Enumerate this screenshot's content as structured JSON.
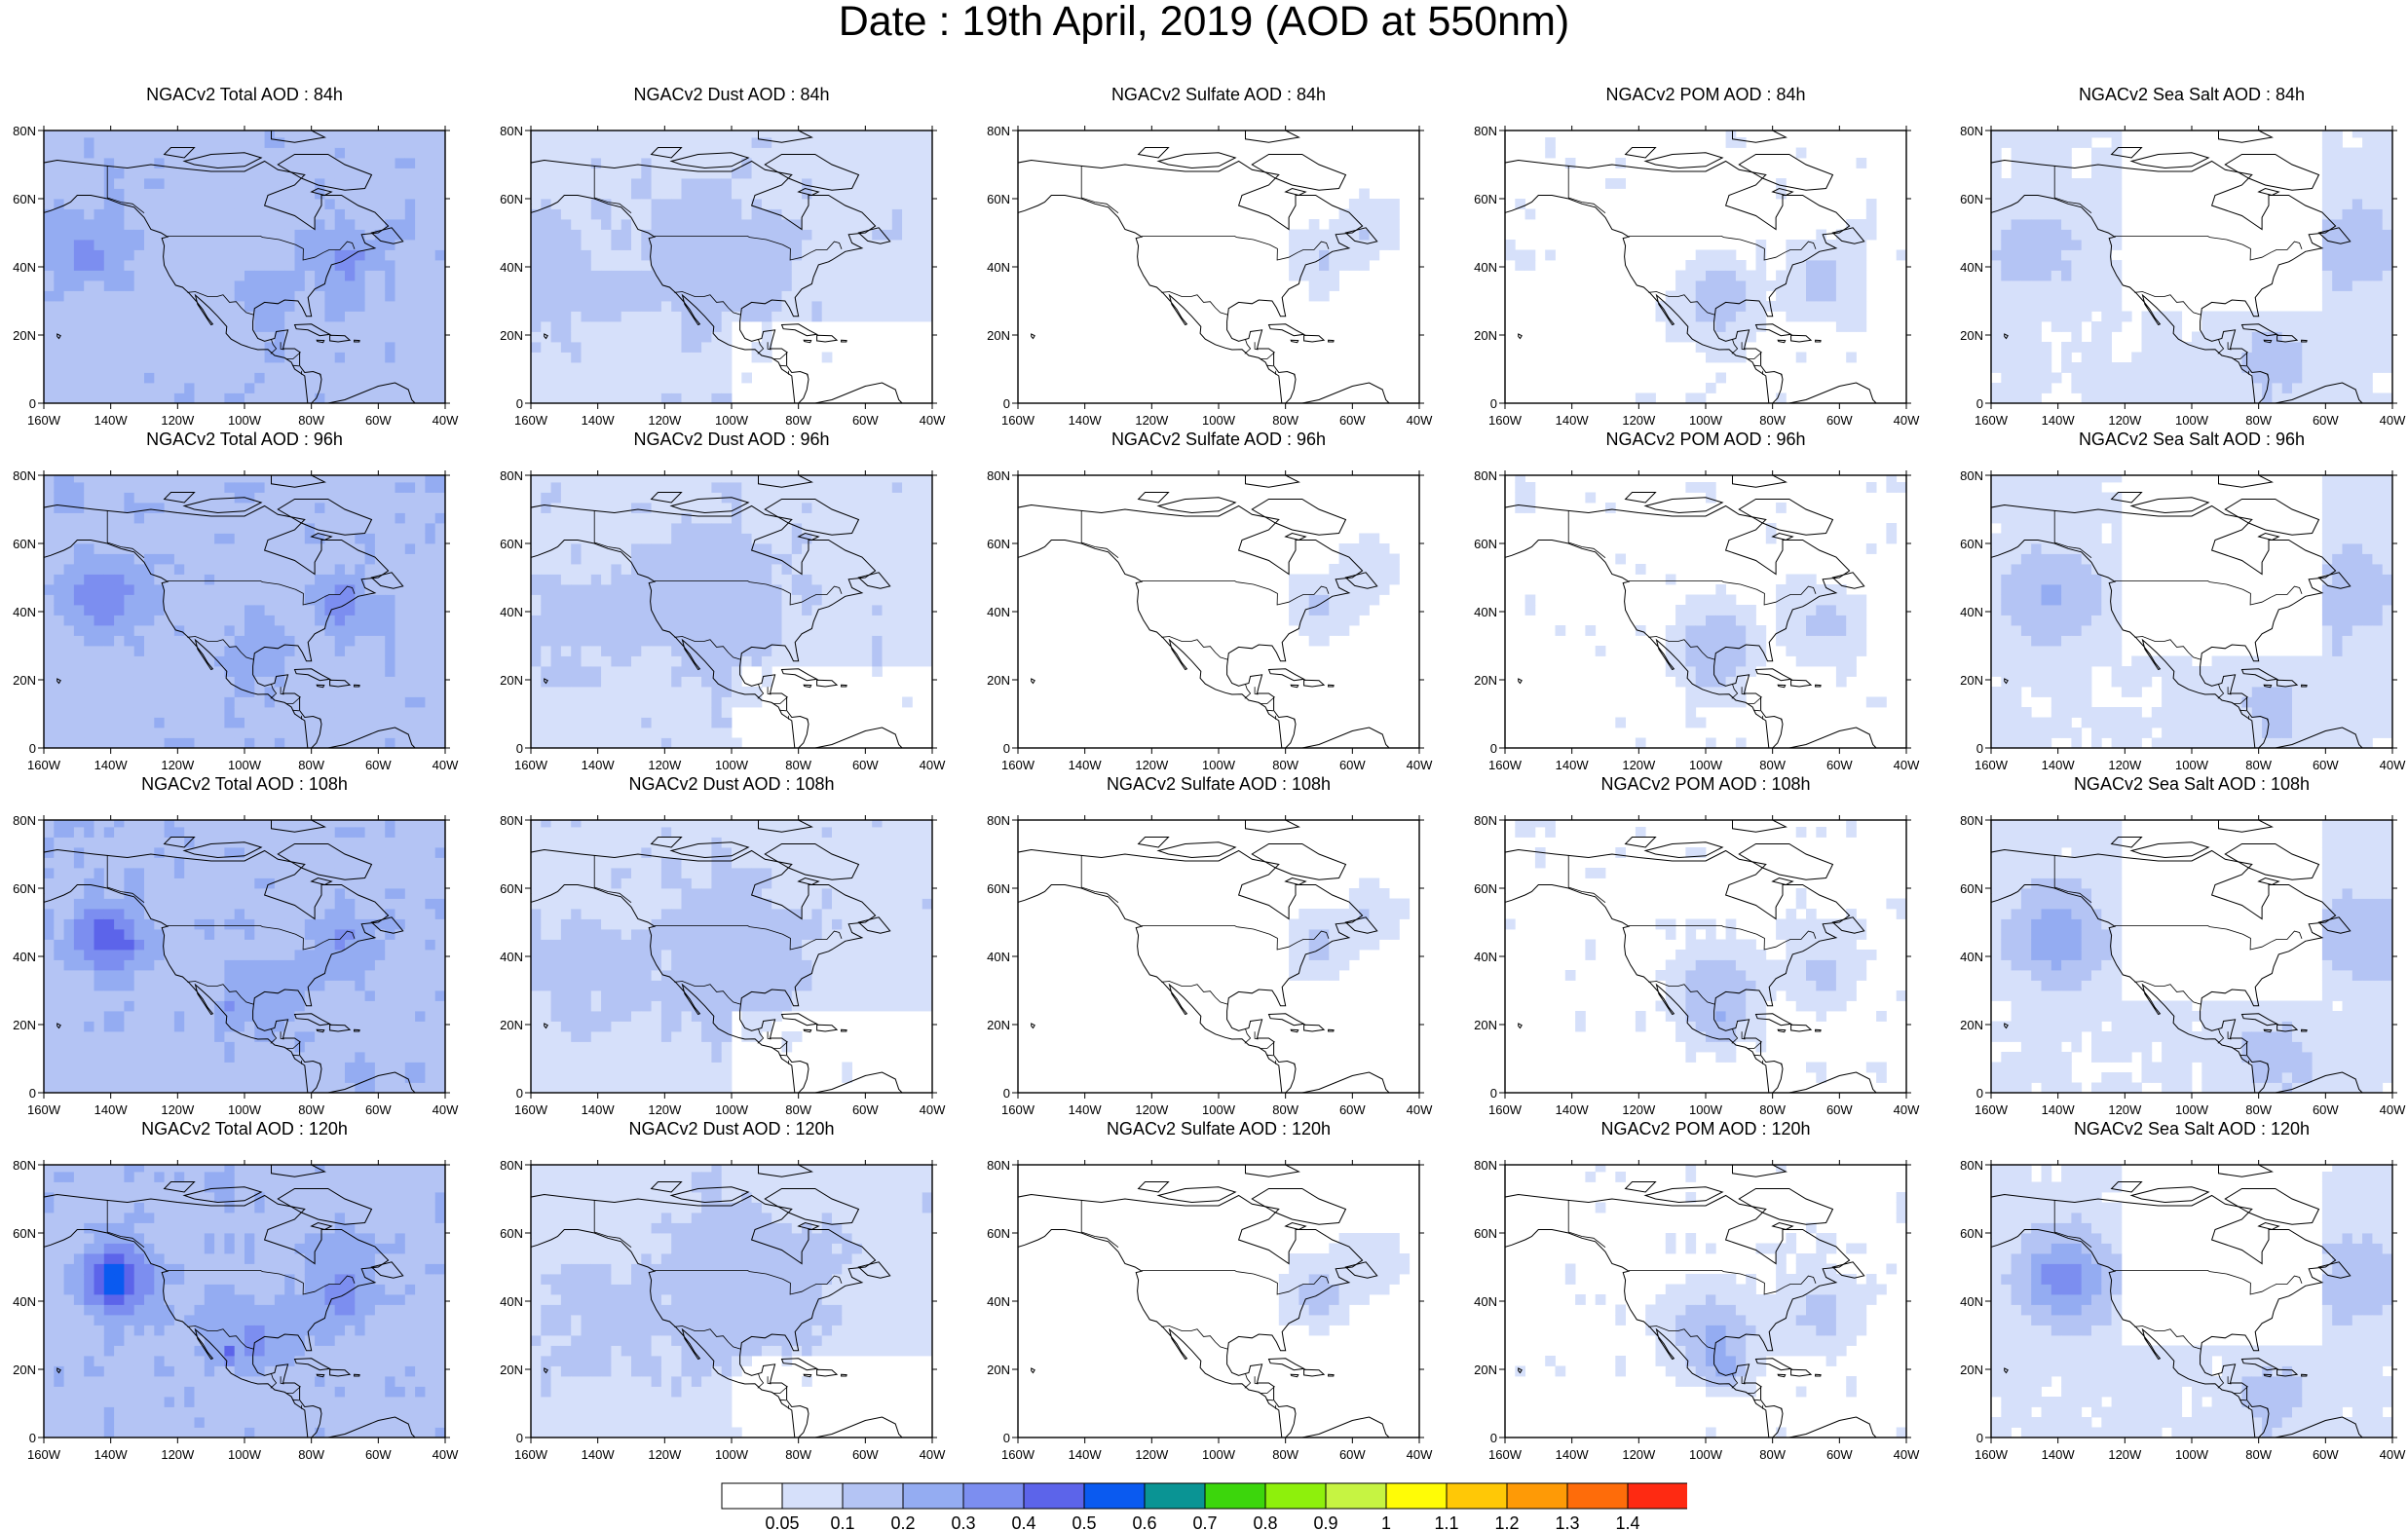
{
  "title": "Date : 19th April, 2019 (AOD at 550nm)",
  "map_extent": {
    "lon": [
      -160,
      -40
    ],
    "lat": [
      0,
      80
    ]
  },
  "axis_labels": {
    "x": [
      "160W",
      "140W",
      "120W",
      "100W",
      "80W",
      "60W",
      "40W"
    ],
    "y": [
      "80N",
      "60N",
      "40N",
      "20N",
      "0"
    ]
  },
  "rows": [
    "84h",
    "96h",
    "108h",
    "120h"
  ],
  "columns": [
    "Total",
    "Dust",
    "Sulfate",
    "POM",
    "Sea Salt"
  ],
  "panels": [
    {
      "title": "NGACv2 Total AOD : 84h",
      "species": "Total",
      "forecast_hour": "84h"
    },
    {
      "title": "NGACv2 Dust AOD : 84h",
      "species": "Dust",
      "forecast_hour": "84h"
    },
    {
      "title": "NGACv2 Sulfate AOD : 84h",
      "species": "Sulfate",
      "forecast_hour": "84h"
    },
    {
      "title": "NGACv2 POM AOD : 84h",
      "species": "POM",
      "forecast_hour": "84h"
    },
    {
      "title": "NGACv2 Sea Salt AOD : 84h",
      "species": "Sea Salt",
      "forecast_hour": "84h"
    },
    {
      "title": "NGACv2 Total AOD : 96h",
      "species": "Total",
      "forecast_hour": "96h"
    },
    {
      "title": "NGACv2 Dust AOD : 96h",
      "species": "Dust",
      "forecast_hour": "96h"
    },
    {
      "title": "NGACv2 Sulfate AOD : 96h",
      "species": "Sulfate",
      "forecast_hour": "96h"
    },
    {
      "title": "NGACv2 POM AOD : 96h",
      "species": "POM",
      "forecast_hour": "96h"
    },
    {
      "title": "NGACv2 Sea Salt AOD : 96h",
      "species": "Sea Salt",
      "forecast_hour": "96h"
    },
    {
      "title": "NGACv2 Total AOD : 108h",
      "species": "Total",
      "forecast_hour": "108h"
    },
    {
      "title": "NGACv2 Dust AOD : 108h",
      "species": "Dust",
      "forecast_hour": "108h"
    },
    {
      "title": "NGACv2 Sulfate AOD : 108h",
      "species": "Sulfate",
      "forecast_hour": "108h"
    },
    {
      "title": "NGACv2 POM AOD : 108h",
      "species": "POM",
      "forecast_hour": "108h"
    },
    {
      "title": "NGACv2 Sea Salt AOD : 108h",
      "species": "Sea Salt",
      "forecast_hour": "108h"
    },
    {
      "title": "NGACv2 Total AOD : 120h",
      "species": "Total",
      "forecast_hour": "120h"
    },
    {
      "title": "NGACv2 Dust AOD : 120h",
      "species": "Dust",
      "forecast_hour": "120h"
    },
    {
      "title": "NGACv2 Sulfate AOD : 120h",
      "species": "Sulfate",
      "forecast_hour": "120h"
    },
    {
      "title": "NGACv2 POM AOD : 120h",
      "species": "POM",
      "forecast_hour": "120h"
    },
    {
      "title": "NGACv2 Sea Salt  AOD : 120h",
      "species": "Sea Salt",
      "forecast_hour": "120h"
    }
  ],
  "colorbar": {
    "labels": [
      "0.05",
      "0.1",
      "0.2",
      "0.3",
      "0.4",
      "0.5",
      "0.6",
      "0.7",
      "0.8",
      "0.9",
      "1",
      "1.1",
      "1.2",
      "1.3",
      "1.4"
    ],
    "colors": [
      "#ffffff",
      "#d6e0fa",
      "#b4c4f4",
      "#94acf2",
      "#7c8ef0",
      "#5c64ea",
      "#0a5af0",
      "#0a9494",
      "#3cd60c",
      "#8ef00c",
      "#c6f442",
      "#fffc06",
      "#ffc806",
      "#fe9a06",
      "#fe6c0a",
      "#fe2a12"
    ]
  },
  "map_colors": {
    "land_outline": "#000000",
    "ocean": "#ffffff"
  }
}
